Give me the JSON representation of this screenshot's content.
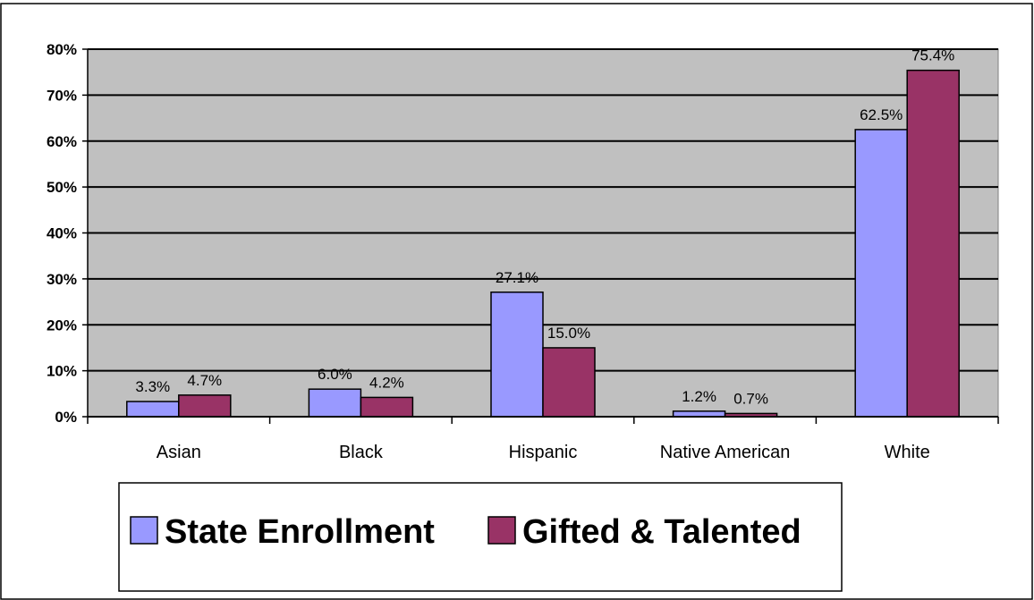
{
  "chart_data": {
    "type": "bar",
    "categories": [
      "Asian",
      "Black",
      "Hispanic",
      "Native American",
      "White"
    ],
    "series": [
      {
        "name": "State Enrollment",
        "values": [
          3.3,
          6.0,
          27.1,
          1.2,
          62.5
        ],
        "labels": [
          "3.3%",
          "6.0%",
          "27.1%",
          "1.2%",
          "62.5%"
        ]
      },
      {
        "name": "Gifted & Talented",
        "values": [
          4.7,
          4.2,
          15.0,
          0.7,
          75.4
        ],
        "labels": [
          "4.7%",
          "4.2%",
          "15.0%",
          "0.7%",
          "75.4%"
        ]
      }
    ],
    "y_ticks": [
      "0%",
      "10%",
      "20%",
      "30%",
      "40%",
      "50%",
      "60%",
      "70%",
      "80%"
    ],
    "ylim": [
      0,
      80
    ],
    "grid": true,
    "legend_position": "bottom",
    "colors": {
      "series": [
        "#9999ff",
        "#993366"
      ],
      "plot_background": "#c0c0c0",
      "gridline": "#000000"
    }
  }
}
